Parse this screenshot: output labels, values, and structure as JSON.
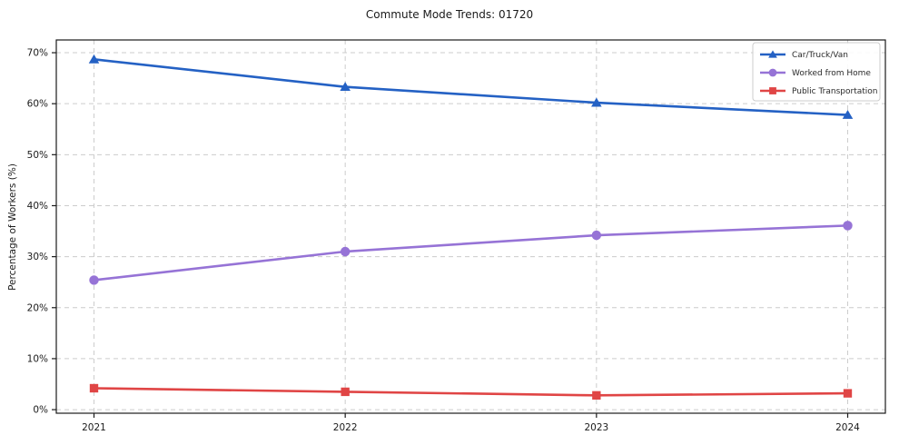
{
  "chart_data": {
    "type": "line",
    "title": "Commute Mode Trends: 01720",
    "xlabel": "",
    "ylabel": "Percentage of Workers (%)",
    "categories": [
      "2021",
      "2022",
      "2023",
      "2024"
    ],
    "series": [
      {
        "name": "Car/Truck/Van",
        "color": "#2461c4",
        "marker": "triangle",
        "values": [
          68.7,
          63.3,
          60.2,
          57.8
        ]
      },
      {
        "name": "Worked from Home",
        "color": "#9673d6",
        "marker": "circle",
        "values": [
          25.4,
          31.0,
          34.2,
          36.1
        ]
      },
      {
        "name": "Public Transportation",
        "color": "#e04545",
        "marker": "square",
        "values": [
          4.2,
          3.5,
          2.8,
          3.2
        ]
      }
    ],
    "ylim": [
      0,
      70
    ],
    "yticks": [
      0,
      10,
      20,
      30,
      40,
      50,
      60,
      70
    ],
    "ytick_suffix": "%",
    "grid": true,
    "grid_style": "dashed",
    "legend_position": "top-right",
    "colors": {
      "grid": "#cccccc",
      "spine": "#1a1a1a",
      "legend_border": "#cccccc",
      "background": "#ffffff"
    }
  }
}
